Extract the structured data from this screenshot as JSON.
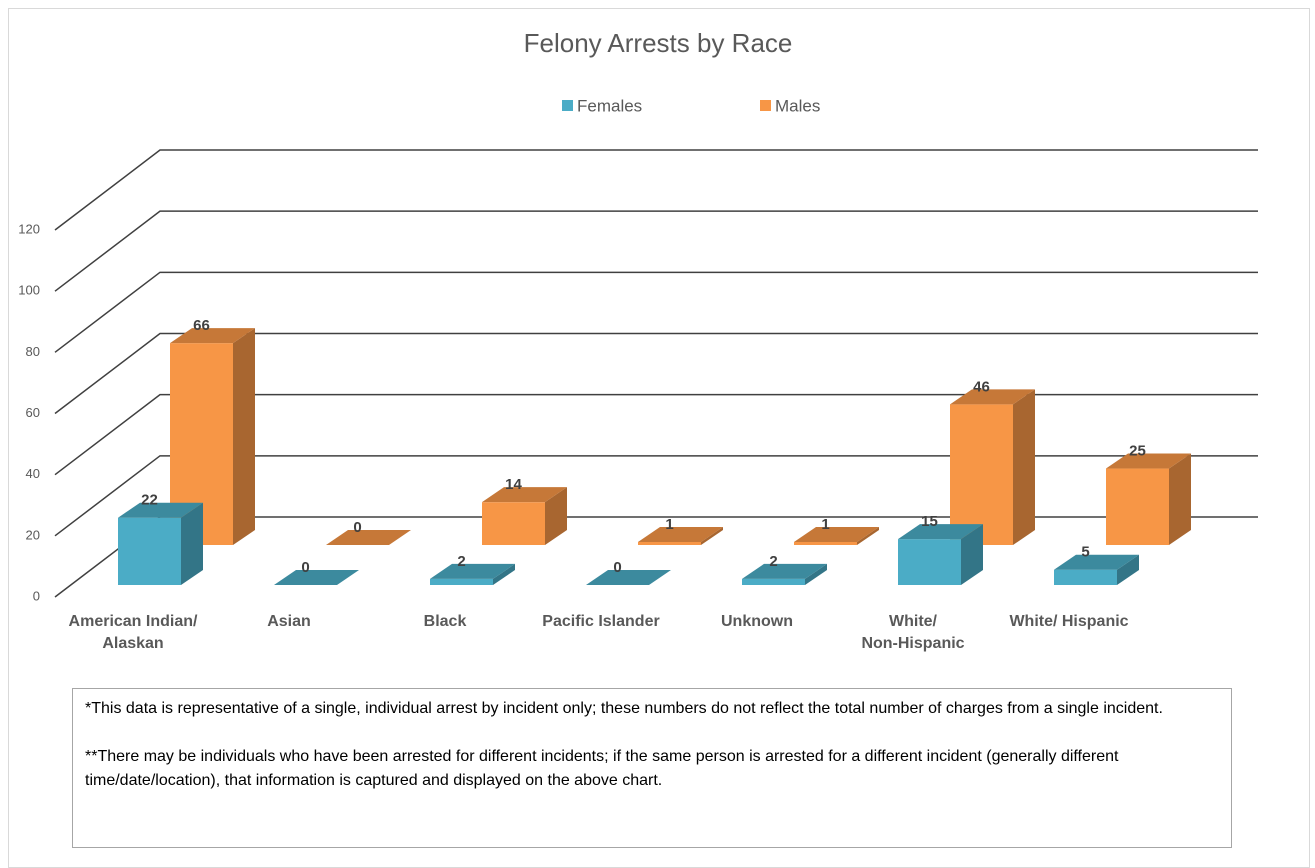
{
  "chart_data": {
    "type": "bar3d",
    "title": "Felony Arrests by Race",
    "categories": [
      "American Indian/\nAlaskan",
      "Asian",
      "Black",
      "Pacific Islander",
      "Unknown",
      "White/\nNon-Hispanic",
      "White/ Hispanic"
    ],
    "series": [
      {
        "name": "Females",
        "color": "#4bacc6",
        "values": [
          22,
          0,
          2,
          0,
          2,
          15,
          5
        ]
      },
      {
        "name": "Males",
        "color": "#f79646",
        "values": [
          66,
          0,
          14,
          1,
          1,
          46,
          25
        ]
      }
    ],
    "ylim": [
      0,
      120
    ],
    "yticks": [
      0,
      20,
      40,
      60,
      80,
      100,
      120
    ],
    "grid": true,
    "legend": "top"
  },
  "notes": [
    "*This data is representative of a single, individual arrest by incident only; these numbers do not reflect the total number of charges from a single incident.",
    "**There may be individuals who have been arrested for different incidents; if the same person is arrested for a different incident (generally different time/date/location), that information is captured and displayed on the above chart."
  ]
}
